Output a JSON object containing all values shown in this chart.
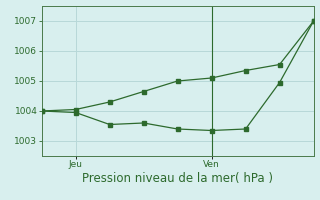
{
  "xlabel": "Pression niveau de la mer( hPa )",
  "background_color": "#d8efee",
  "grid_color": "#b8d8d8",
  "line_color": "#2d6a2d",
  "spine_color": "#4a7a4a",
  "ylim": [
    1002.5,
    1007.5
  ],
  "yticks": [
    1003,
    1004,
    1005,
    1006,
    1007
  ],
  "xlim": [
    0,
    8
  ],
  "xtick_positions": [
    1,
    5
  ],
  "xtick_labels": [
    "Jeu",
    "Ven"
  ],
  "line1_x": [
    0,
    1,
    2,
    3,
    4,
    5,
    6,
    7,
    8
  ],
  "line1_y": [
    1004.0,
    1004.05,
    1004.3,
    1004.65,
    1005.0,
    1005.1,
    1005.35,
    1005.55,
    1007.0
  ],
  "line2_x": [
    0,
    1,
    2,
    3,
    4,
    5,
    6,
    7,
    8
  ],
  "line2_y": [
    1004.0,
    1003.95,
    1003.55,
    1003.6,
    1003.4,
    1003.35,
    1003.4,
    1004.95,
    1007.0
  ],
  "vline_x": 5,
  "tick_fontsize": 6.5,
  "xlabel_fontsize": 8.5
}
